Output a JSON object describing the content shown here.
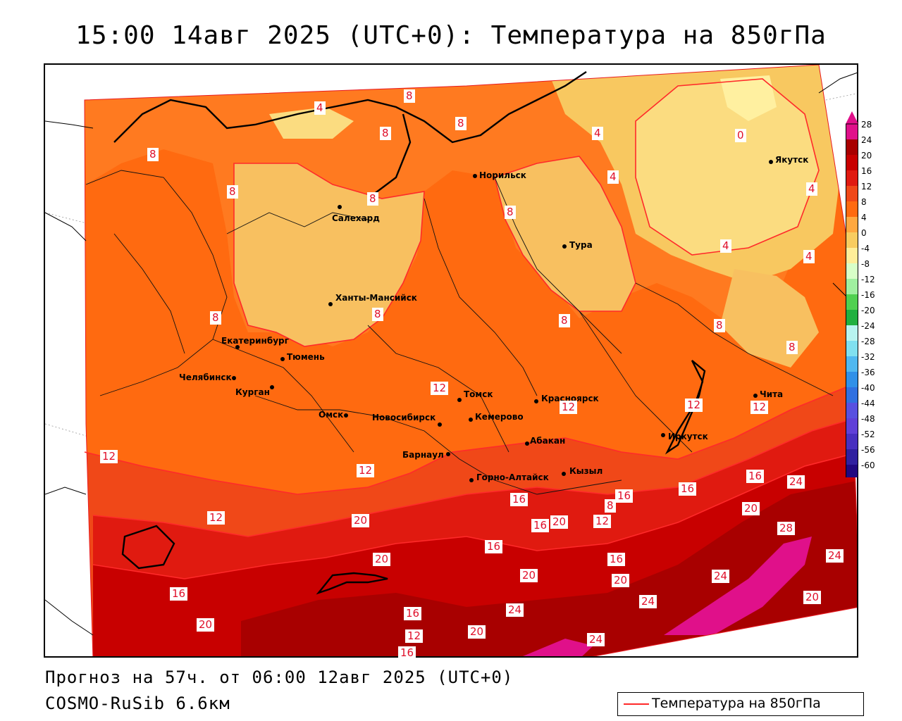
{
  "title": "15:00 14авг 2025 (UTC+0): Температура на 850гПа",
  "forecast_line": "Прогноз на 57ч. от 06:00 12авг 2025 (UTC+0)",
  "model_line": "COSMO-RuSib 6.6км",
  "legend_label": "Температура на 850гПа",
  "colorbar": {
    "labels": [
      "28",
      "24",
      "20",
      "16",
      "12",
      "8",
      "4",
      "0",
      "-4",
      "-8",
      "-12",
      "-16",
      "-20",
      "-24",
      "-28",
      "-32",
      "-36",
      "-40",
      "-44",
      "-48",
      "-52",
      "-56",
      "-60"
    ],
    "colors": [
      "#e0108a",
      "#a80000",
      "#c80000",
      "#e01a10",
      "#f04818",
      "#ff6a10",
      "#ffa840",
      "#f8cc60",
      "#ffee99",
      "#d8ffc8",
      "#a0f0a0",
      "#50d050",
      "#20b040",
      "#b8f4f0",
      "#80e0f0",
      "#50b8f0",
      "#3090e8",
      "#3070e0",
      "#5850e0",
      "#6040d8",
      "#4830c0",
      "#3020a0",
      "#200880"
    ]
  },
  "cities": [
    {
      "name": "Норильск"
    },
    {
      "name": "Якутск"
    },
    {
      "name": "Салехард"
    },
    {
      "name": "Тура"
    },
    {
      "name": "Ханты-Мансийск"
    },
    {
      "name": "Екатеринбург"
    },
    {
      "name": "Тюмень"
    },
    {
      "name": "Челябинск"
    },
    {
      "name": "Курган"
    },
    {
      "name": "Омск"
    },
    {
      "name": "Новосибирск"
    },
    {
      "name": "Томск"
    },
    {
      "name": "Кемерово"
    },
    {
      "name": "Красноярск"
    },
    {
      "name": "Абакан"
    },
    {
      "name": "Барнаул"
    },
    {
      "name": "Горно-Алтайск"
    },
    {
      "name": "Кызыл"
    },
    {
      "name": "Иркутск"
    },
    {
      "name": "Чита"
    }
  ],
  "isoline_labels": [
    "8",
    "4",
    "8",
    "8",
    "8",
    "4",
    "0",
    "4",
    "4",
    "8",
    "8",
    "8",
    "8",
    "8",
    "8",
    "4",
    "4",
    "8",
    "8",
    "8",
    "12",
    "12",
    "12",
    "12",
    "12",
    "16",
    "16",
    "24",
    "12",
    "16",
    "16",
    "20",
    "12",
    "8",
    "12",
    "20",
    "16",
    "28",
    "20",
    "16",
    "20",
    "16",
    "20",
    "24",
    "24",
    "24",
    "20",
    "16",
    "20",
    "16",
    "24",
    "20",
    "20",
    "24",
    "16",
    "12"
  ]
}
